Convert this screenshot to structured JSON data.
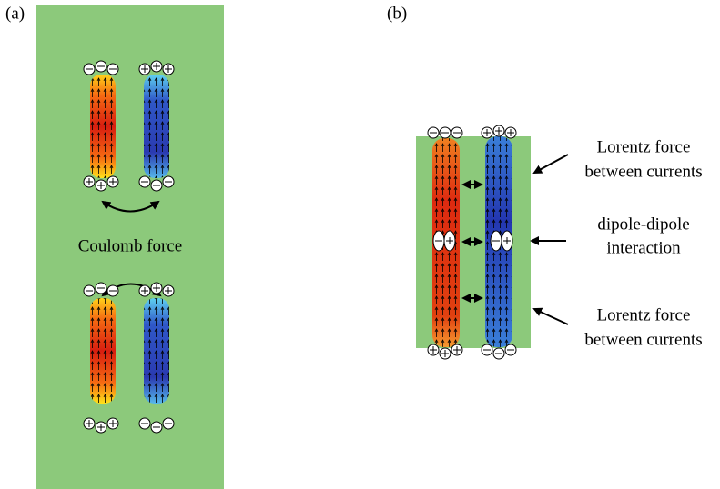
{
  "panel_a": {
    "label": "(a)",
    "annotation": "Coulomb force"
  },
  "panel_b": {
    "label": "(b)",
    "annotations": [
      {
        "lines": [
          "Lorentz force",
          "between currents"
        ]
      },
      {
        "lines": [
          "dipole-dipole",
          "interaction"
        ]
      },
      {
        "lines": [
          "Lorentz force",
          "between currents"
        ]
      }
    ]
  }
}
